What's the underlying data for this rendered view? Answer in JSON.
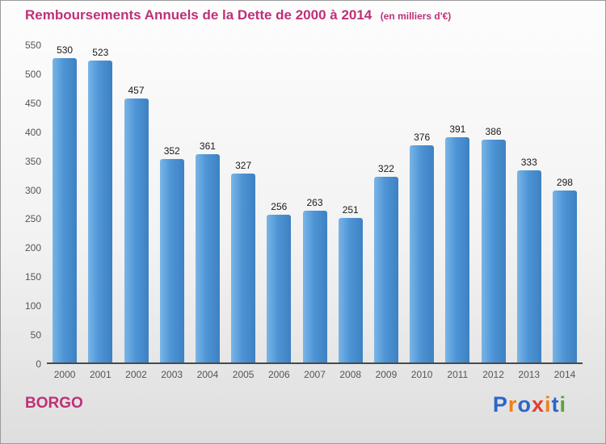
{
  "header": {
    "title": "Remboursements Annuels de la Dette de 2000 à 2014",
    "subtitle": "(en milliers d'€)"
  },
  "footer": {
    "commune": "BORGO",
    "logo": {
      "text": "Proxiti",
      "letters": [
        {
          "char": "P",
          "color": "#2b66c9"
        },
        {
          "char": "r",
          "color": "#f08019"
        },
        {
          "char": "o",
          "color": "#2b66c9"
        },
        {
          "char": "x",
          "color": "#e0402f"
        },
        {
          "char": "i",
          "color": "#f08019"
        },
        {
          "char": "t",
          "color": "#2b66c9"
        },
        {
          "char": "i",
          "color": "#57a639"
        }
      ]
    }
  },
  "chart_data": {
    "type": "bar",
    "title": "Remboursements Annuels de la Dette de 2000 à 2014",
    "subtitle": "(en milliers d'€)",
    "categories": [
      "2000",
      "2001",
      "2002",
      "2003",
      "2004",
      "2005",
      "2006",
      "2007",
      "2008",
      "2009",
      "2010",
      "2011",
      "2012",
      "2013",
      "2014"
    ],
    "values": [
      530,
      523,
      457,
      352,
      361,
      327,
      256,
      263,
      251,
      322,
      376,
      391,
      386,
      333,
      298
    ],
    "xlabel": "",
    "ylabel": "",
    "ylim": [
      0,
      550
    ],
    "ytick_step": 50,
    "grid": false,
    "legend": false,
    "bar_color": "#4e95d6"
  }
}
